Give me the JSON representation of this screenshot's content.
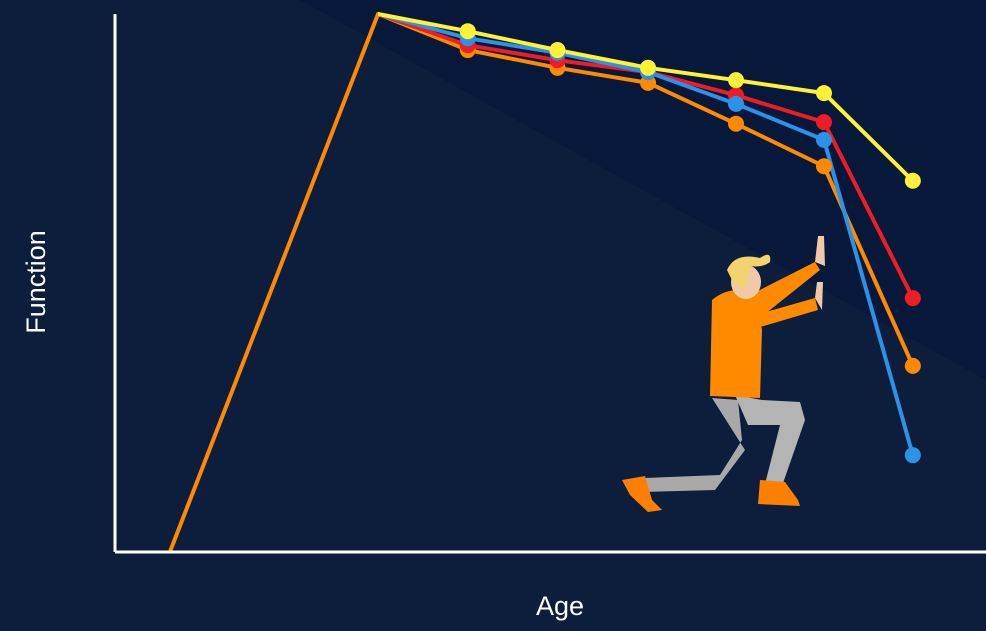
{
  "chart_data": {
    "type": "line",
    "x_label": "Age",
    "y_label": "Function",
    "xlim": [
      0,
      100
    ],
    "ylim": [
      0,
      100
    ],
    "x": [
      6.3,
      30.2,
      40.5,
      50.8,
      61.2,
      71.3,
      81.4,
      91.6
    ],
    "series": [
      {
        "color": "#ff8a00",
        "values": [
          0,
          100,
          93.3,
          90,
          87.2,
          79.6,
          71.7,
          34.6
        ]
      },
      {
        "color": "#ee1c24",
        "values": [
          null,
          100,
          94.2,
          91.4,
          89.2,
          84.9,
          79.9,
          47.2
        ]
      },
      {
        "color": "#2a93e8",
        "values": [
          null,
          100,
          95.5,
          92.8,
          89.2,
          83.3,
          76.6,
          18
        ]
      },
      {
        "color": "#fff236",
        "values": [
          null,
          100,
          96.8,
          93.3,
          90,
          87.7,
          85.3,
          69
        ]
      }
    ]
  }
}
